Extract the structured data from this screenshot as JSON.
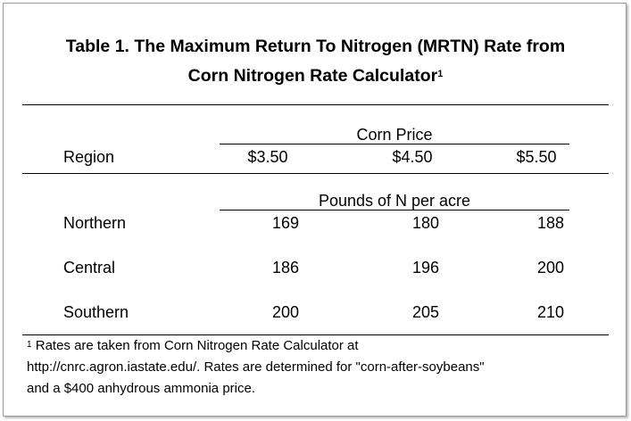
{
  "table": {
    "title_line1": "Table 1.  The Maximum Return To Nitrogen (MRTN) Rate from",
    "title_line2": "Corn Nitrogen Rate Calculator",
    "title_sup": "1",
    "group_header": "Corn Price",
    "region_header": "Region",
    "price_headers": [
      "$3.50",
      "$4.50",
      "$5.50"
    ],
    "unit_header": "Pounds of N per acre",
    "rows": [
      {
        "region": "Northern",
        "values": [
          "169",
          "180",
          "188"
        ]
      },
      {
        "region": "Central",
        "values": [
          "186",
          "196",
          "200"
        ]
      },
      {
        "region": "Southern",
        "values": [
          "200",
          "205",
          "210"
        ]
      }
    ]
  },
  "footnote": {
    "marker": "1",
    "line1": " Rates are taken from Corn Nitrogen Rate Calculator at",
    "line2": "http://cnrc.agron.iastate.edu/.   Rates are determined for \"corn-after-soybeans\"",
    "line3": "and a $400 anhydrous ammonia price."
  }
}
